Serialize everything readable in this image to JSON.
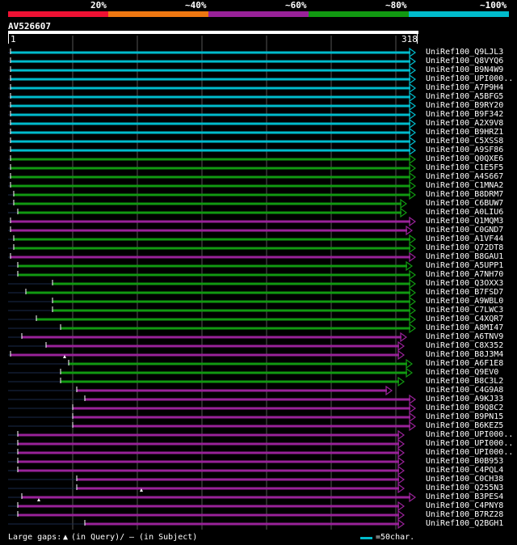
{
  "legend": {
    "segments": [
      {
        "label": "20%",
        "color": "#ee1133"
      },
      {
        "label": "~40%",
        "color": "#ee7711"
      },
      {
        "label": "~60%",
        "color": "#992299"
      },
      {
        "label": "~80%",
        "color": "#119911"
      },
      {
        "label": "~100%",
        "color": "#00bbcc"
      }
    ]
  },
  "query": {
    "id": "AV526607",
    "start": "1",
    "end": "318"
  },
  "hits": [
    {
      "id": "UniRef100_Q9LJL3",
      "color": "#00bbcc"
    },
    {
      "id": "UniRef100_Q8VYQ6",
      "color": "#00bbcc"
    },
    {
      "id": "UniRef100_B9N4W9",
      "color": "#00bbcc"
    },
    {
      "id": "UniRef100_UPI000..",
      "color": "#00bbcc"
    },
    {
      "id": "UniRef100_A7P9H4",
      "color": "#00bbcc"
    },
    {
      "id": "UniRef100_A5BFG5",
      "color": "#00bbcc"
    },
    {
      "id": "UniRef100_B9RY20",
      "color": "#00bbcc"
    },
    {
      "id": "UniRef100_B9F342",
      "color": "#00bbcc"
    },
    {
      "id": "UniRef100_A2X9V8",
      "color": "#00bbcc"
    },
    {
      "id": "UniRef100_B9HRZ1",
      "color": "#00bbcc"
    },
    {
      "id": "UniRef100_C5XSS8",
      "color": "#00bbcc"
    },
    {
      "id": "UniRef100_A9SF86",
      "color": "#00bbcc"
    },
    {
      "id": "UniRef100_Q0QXE6",
      "color": "#119911"
    },
    {
      "id": "UniRef100_C1E5F5",
      "color": "#119911"
    },
    {
      "id": "UniRef100_A4S667",
      "color": "#119911"
    },
    {
      "id": "UniRef100_C1MNA2",
      "color": "#119911"
    },
    {
      "id": "UniRef100_B8DRM7",
      "color": "#119911"
    },
    {
      "id": "UniRef100_C6BUW7",
      "color": "#119911"
    },
    {
      "id": "UniRef100_A0LIU6",
      "color": "#119911"
    },
    {
      "id": "UniRef100_Q1MQM3",
      "color": "#992299"
    },
    {
      "id": "UniRef100_C0GND7",
      "color": "#992299"
    },
    {
      "id": "UniRef100_A1VF44",
      "color": "#119911"
    },
    {
      "id": "UniRef100_Q72DT8",
      "color": "#119911"
    },
    {
      "id": "UniRef100_B8GAU1",
      "color": "#992299"
    },
    {
      "id": "UniRef100_A5UPP1",
      "color": "#119911"
    },
    {
      "id": "UniRef100_A7NH70",
      "color": "#119911"
    },
    {
      "id": "UniRef100_Q3OXX3",
      "color": "#119911"
    },
    {
      "id": "UniRef100_B7FSD7",
      "color": "#119911"
    },
    {
      "id": "UniRef100_A9WBL0",
      "color": "#119911"
    },
    {
      "id": "UniRef100_C7LWC3",
      "color": "#119911"
    },
    {
      "id": "UniRef100_C4XQR7",
      "color": "#119911"
    },
    {
      "id": "UniRef100_A8MI47",
      "color": "#119911"
    },
    {
      "id": "UniRef100_A6TNV9",
      "color": "#992299"
    },
    {
      "id": "UniRef100_C8X352",
      "color": "#992299"
    },
    {
      "id": "UniRef100_B8J3M4",
      "color": "#992299"
    },
    {
      "id": "UniRef100_A6F1E8",
      "color": "#119911"
    },
    {
      "id": "UniRef100_Q9EV0",
      "color": "#119911"
    },
    {
      "id": "UniRef100_B8C3L2",
      "color": "#119911"
    },
    {
      "id": "UniRef100_C4G9A8",
      "color": "#992299"
    },
    {
      "id": "UniRef100_A9KJ33",
      "color": "#992299"
    },
    {
      "id": "UniRef100_B9Q8C2",
      "color": "#992299"
    },
    {
      "id": "UniRef100_B9PN15",
      "color": "#992299"
    },
    {
      "id": "UniRef100_B6KEZ5",
      "color": "#992299"
    },
    {
      "id": "UniRef100_UPI000..",
      "color": "#992299"
    },
    {
      "id": "UniRef100_UPI000..",
      "color": "#992299"
    },
    {
      "id": "UniRef100_UPI000..",
      "color": "#992299"
    },
    {
      "id": "UniRef100_B0B953",
      "color": "#992299"
    },
    {
      "id": "UniRef100_C4PQL4",
      "color": "#992299"
    },
    {
      "id": "UniRef100_C0CH38",
      "color": "#992299"
    },
    {
      "id": "UniRef100_Q255N3",
      "color": "#992299"
    },
    {
      "id": "UniRef100_B3PES4",
      "color": "#992299"
    },
    {
      "id": "UniRef100_C4PNY8",
      "color": "#992299"
    },
    {
      "id": "UniRef100_B7RZ28",
      "color": "#992299"
    },
    {
      "id": "UniRef100_Q2BGH1",
      "color": "#992299"
    }
  ],
  "footer": {
    "gaps_label": "Large gaps:",
    "gap_query": "(in Query)/",
    "gap_subject": "– (in Subject)",
    "scale_label": "=50char."
  }
}
